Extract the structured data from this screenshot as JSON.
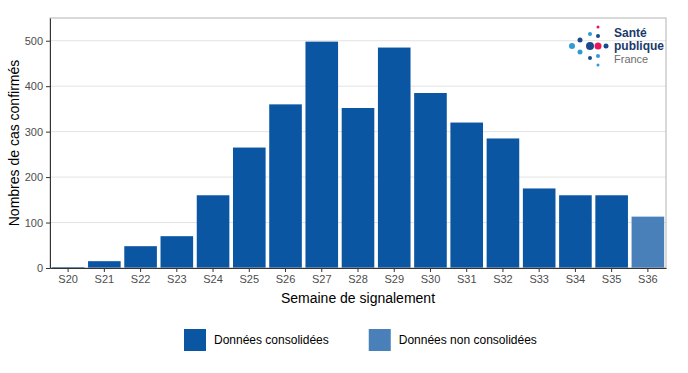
{
  "chart_data": {
    "type": "bar",
    "x_label": "Semaine de signalement",
    "y_label": "Nombres de cas confirmés",
    "categories": [
      "S20",
      "S21",
      "S22",
      "S23",
      "S24",
      "S25",
      "S26",
      "S27",
      "S28",
      "S29",
      "S30",
      "S31",
      "S32",
      "S33",
      "S34",
      "S35",
      "S36"
    ],
    "series": [
      {
        "name": "Données consolidées",
        "color": "#0b56a3",
        "values": [
          2,
          15,
          48,
          70,
          160,
          265,
          360,
          498,
          352,
          485,
          385,
          320,
          285,
          175,
          160,
          160,
          null
        ]
      },
      {
        "name": "Données non consolidées",
        "color": "#4a80b9",
        "values": [
          null,
          null,
          null,
          null,
          null,
          null,
          null,
          null,
          null,
          null,
          null,
          null,
          null,
          null,
          null,
          null,
          113
        ]
      }
    ],
    "ylim": [
      0,
      550
    ],
    "yticks": [
      0,
      100,
      200,
      300,
      400,
      500
    ],
    "grid": true,
    "legend": "bottom",
    "annotations": [
      "Santé",
      "publique",
      "France"
    ]
  }
}
